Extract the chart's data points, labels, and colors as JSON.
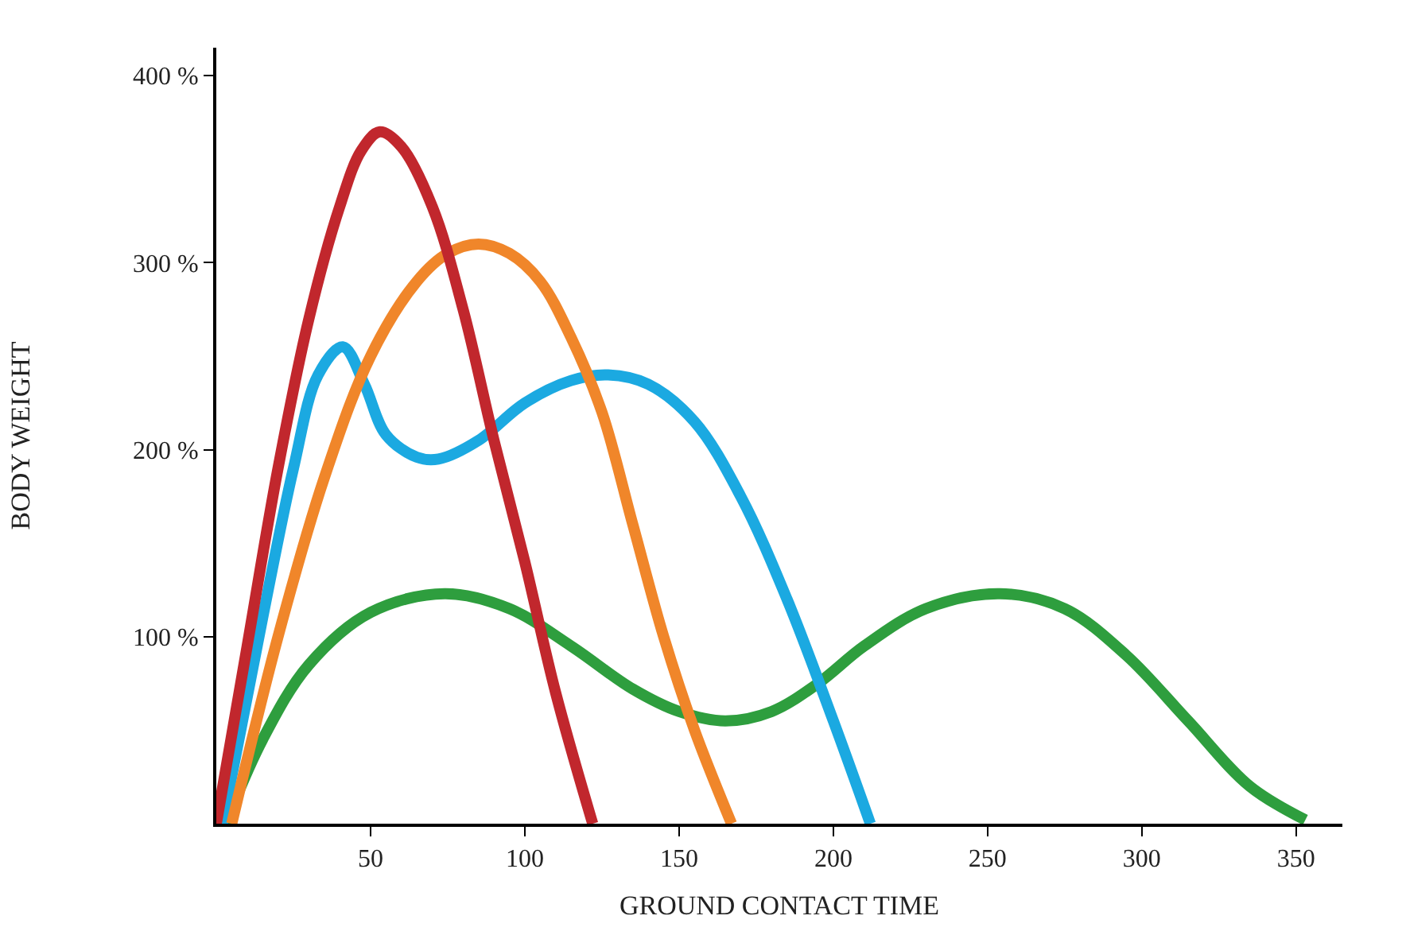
{
  "chart_data": {
    "type": "line",
    "xlabel": "GROUND CONTACT TIME",
    "ylabel": "BODY WEIGHT",
    "xlim": [
      0,
      365
    ],
    "ylim": [
      0,
      415
    ],
    "xticks": [
      50,
      100,
      150,
      200,
      250,
      300,
      350
    ],
    "yticks": [
      {
        "value": 100,
        "label": "100 %"
      },
      {
        "value": 200,
        "label": "200 %"
      },
      {
        "value": 300,
        "label": "300 %"
      },
      {
        "value": 400,
        "label": "400 %"
      }
    ],
    "marker": "none",
    "line_style": "solid",
    "series": [
      {
        "color": "#2e9e3e",
        "x": [
          3,
          15,
          30,
          50,
          74,
          95,
          115,
          135,
          150,
          165,
          180,
          195,
          210,
          230,
          254,
          275,
          295,
          315,
          335,
          353
        ],
        "values": [
          0,
          45,
          85,
          113,
          123,
          115,
          95,
          72,
          60,
          55,
          60,
          75,
          95,
          115,
          123,
          115,
          90,
          55,
          20,
          2
        ]
      },
      {
        "color": "#1ba9e1",
        "x": [
          2,
          15,
          25,
          33,
          41,
          48,
          55,
          65,
          72,
          85,
          100,
          115,
          127,
          140,
          155,
          170,
          185,
          200,
          212
        ],
        "values": [
          0,
          110,
          190,
          240,
          255,
          235,
          208,
          196,
          195,
          205,
          225,
          237,
          240,
          235,
          215,
          175,
          120,
          55,
          0
        ]
      },
      {
        "color": "#f0862a",
        "x": [
          5,
          20,
          35,
          50,
          65,
          75,
          85,
          95,
          105,
          115,
          125,
          135,
          145,
          155,
          167
        ],
        "values": [
          0,
          100,
          185,
          250,
          290,
          305,
          310,
          305,
          290,
          260,
          220,
          160,
          100,
          50,
          0
        ]
      },
      {
        "color": "#c1272d",
        "x": [
          0,
          10,
          20,
          30,
          40,
          47,
          53,
          60,
          70,
          80,
          90,
          100,
          110,
          122
        ],
        "values": [
          0,
          95,
          190,
          270,
          330,
          360,
          370,
          362,
          330,
          275,
          205,
          140,
          70,
          0
        ]
      }
    ]
  }
}
